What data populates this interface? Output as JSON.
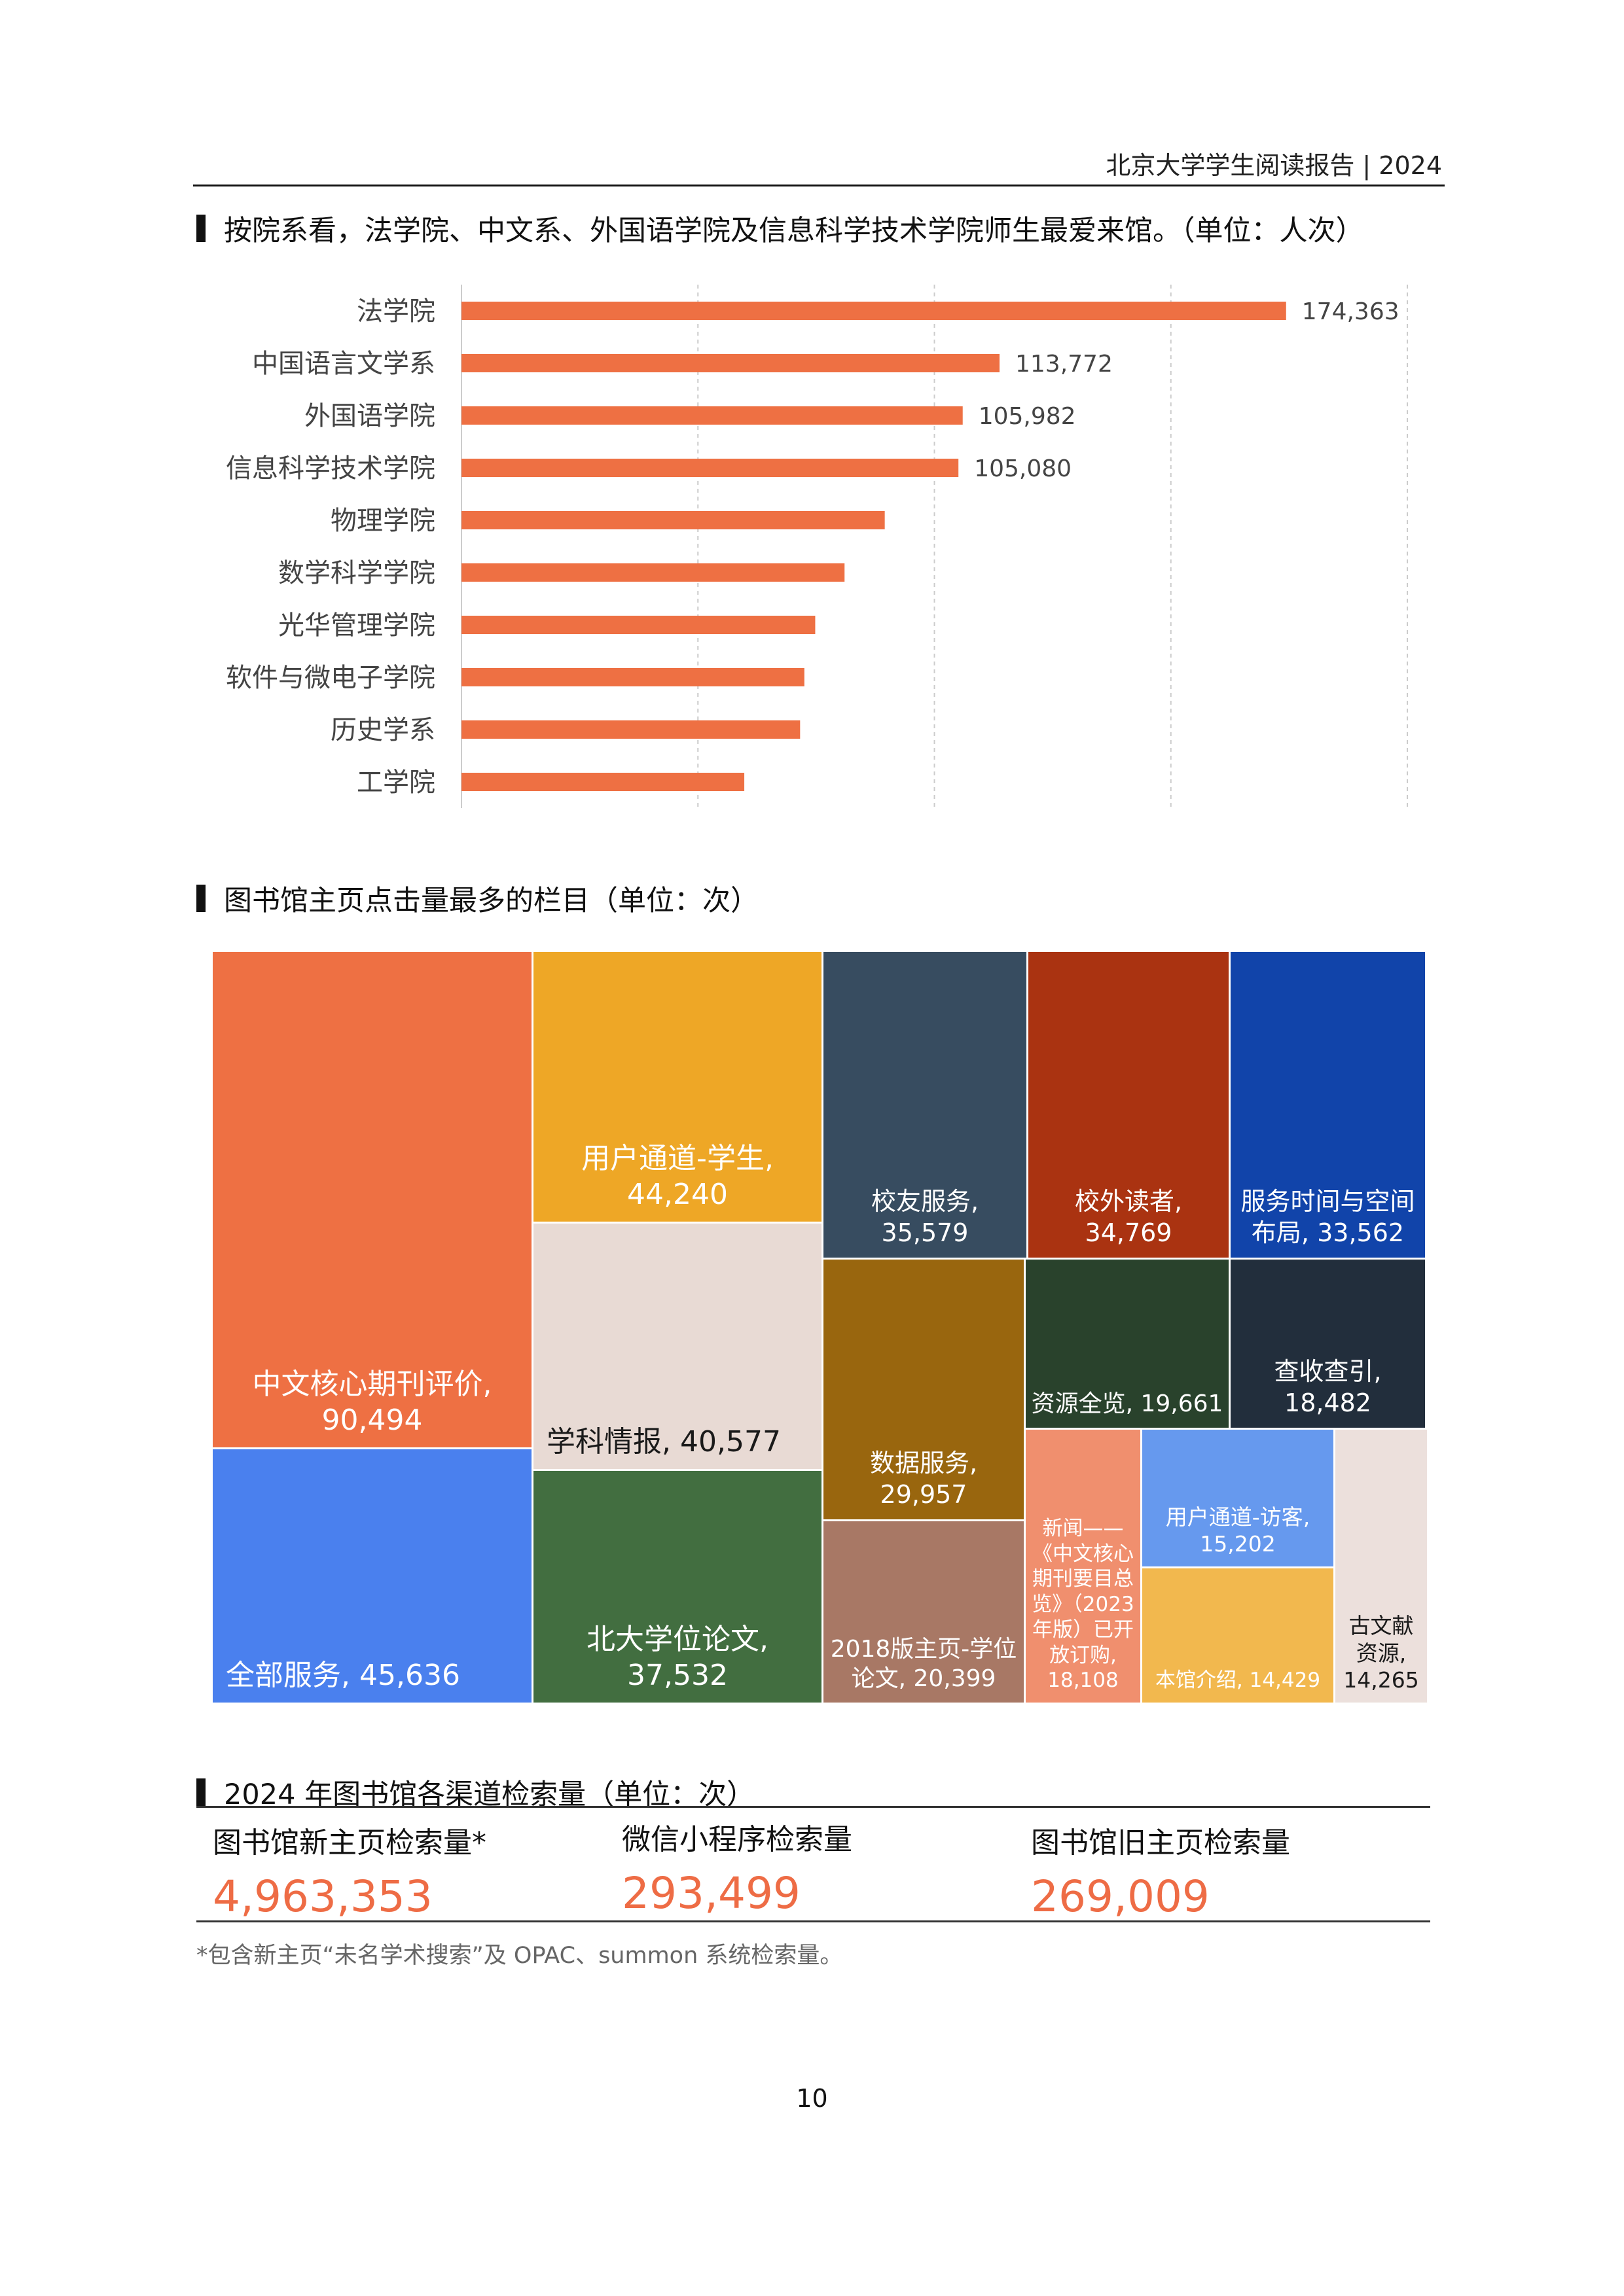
{
  "header": {
    "title": "北京大学学生阅读报告 | 2024"
  },
  "section1": {
    "title": "按院系看，法学院、中文系、外国语学院及信息科学技术学院师生最爱来馆。（单位：人次）"
  },
  "chart_data": {
    "type": "bar",
    "orientation": "horizontal",
    "categories": [
      "法学院",
      "中国语言文学系",
      "外国语学院",
      "信息科学技术学院",
      "物理学院",
      "数学科学学院",
      "光华管理学院",
      "软件与微电子学院",
      "历史学系",
      "工学院"
    ],
    "values": [
      174363,
      113772,
      105982,
      105080,
      89500,
      81000,
      74800,
      72500,
      71600,
      59800
    ],
    "value_labels": [
      "174,363",
      "113,772",
      "105,982",
      "105,080",
      "",
      "",
      "",
      "",
      "",
      ""
    ],
    "xlim": [
      0,
      200000
    ],
    "grid": true,
    "bar_color": "#ee7043"
  },
  "section2": {
    "title": "图书馆主页点击量最多的栏目（单位：次）"
  },
  "treemap": {
    "tiles": [
      {
        "name": "中文核心期刊评价,",
        "value": "90,494",
        "color": "#ee7043"
      },
      {
        "name": "全部服务,",
        "value": "45,636",
        "color": "#4a80ee"
      },
      {
        "name": "用户通道-学生,",
        "value": "44,240",
        "color": "#eea726"
      },
      {
        "name": "学科情报,",
        "value": "40,577",
        "color": "#e8dad4"
      },
      {
        "name": "北大学位论文,",
        "value": "37,532",
        "color": "#426e40"
      },
      {
        "name": "校友服务,",
        "value": "35,579",
        "color": "#374c60"
      },
      {
        "name": "校外读者,",
        "value": "34,769",
        "color": "#aa3311"
      },
      {
        "name": "服务时间与空间布局,",
        "value": "33,562",
        "color": "#1144aa"
      },
      {
        "name": "数据服务,",
        "value": "29,957",
        "color": "#99660e"
      },
      {
        "name": "2018版主页-学位论文,",
        "value": "20,399",
        "color": "#a87865"
      },
      {
        "name": "资源全览,",
        "value": "19,661",
        "color": "#29422c"
      },
      {
        "name": "查收查引,",
        "value": "18,482",
        "color": "#222e3c"
      },
      {
        "name": "新闻——《中文核心期刊要目总览》（2023年版）已开放订购,",
        "value": "18,108",
        "color": "#f08f6e"
      },
      {
        "name": "用户通道-访客,",
        "value": "15,202",
        "color": "#6699ee"
      },
      {
        "name": "本馆介绍,",
        "value": "14,429",
        "color": "#f2b84e"
      },
      {
        "name": "古文献资源,",
        "value": "14,265",
        "color": "#ece0dc"
      }
    ]
  },
  "section3": {
    "title": "2024 年图书馆各渠道检索量（单位：次）"
  },
  "stats": [
    {
      "label": "图书馆新主页检索量*",
      "value": "4,963,353"
    },
    {
      "label": "微信小程序检索量",
      "value": "293,499"
    },
    {
      "label": "图书馆旧主页检索量",
      "value": "269,009"
    }
  ],
  "footnote": "*包含新主页“未名学术搜索”及 OPAC、summon 系统检索量。",
  "page_number": "10"
}
